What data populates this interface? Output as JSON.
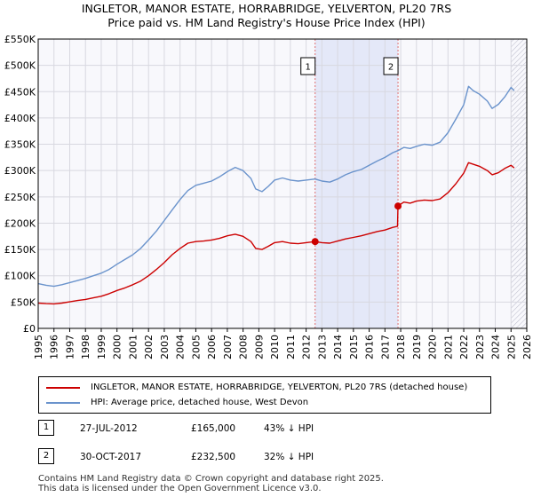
{
  "chart_data": {
    "type": "line",
    "title": "INGLETOR, MANOR ESTATE, HORRABRIDGE, YELVERTON, PL20 7RS",
    "subtitle": "Price paid vs. HM Land Registry's House Price Index (HPI)",
    "xlim": [
      1995,
      2026
    ],
    "ylim": [
      0,
      550000
    ],
    "x_ticks": [
      "1995",
      "1996",
      "1997",
      "1998",
      "1999",
      "2000",
      "2001",
      "2002",
      "2003",
      "2004",
      "2005",
      "2006",
      "2007",
      "2008",
      "2009",
      "2010",
      "2011",
      "2012",
      "2013",
      "2014",
      "2015",
      "2016",
      "2017",
      "2018",
      "2019",
      "2020",
      "2021",
      "2022",
      "2023",
      "2024",
      "2025",
      "2026"
    ],
    "y_ticks": [
      {
        "value": 0,
        "label": "£0"
      },
      {
        "value": 50000,
        "label": "£50K"
      },
      {
        "value": 100000,
        "label": "£100K"
      },
      {
        "value": 150000,
        "label": "£150K"
      },
      {
        "value": 200000,
        "label": "£200K"
      },
      {
        "value": 250000,
        "label": "£250K"
      },
      {
        "value": 300000,
        "label": "£300K"
      },
      {
        "value": 350000,
        "label": "£350K"
      },
      {
        "value": 400000,
        "label": "£400K"
      },
      {
        "value": 450000,
        "label": "£450K"
      },
      {
        "value": 500000,
        "label": "£500K"
      },
      {
        "value": 550000,
        "label": "£550K"
      }
    ],
    "grid": true,
    "shaded_period": [
      2012.57,
      2017.83
    ],
    "forecast_start": 2025.0,
    "series": [
      {
        "name": "INGLETOR, MANOR ESTATE, HORRABRIDGE, YELVERTON, PL20 7RS (detached house)",
        "color": "#cc0000",
        "points": [
          [
            1995.0,
            48000
          ],
          [
            1995.5,
            47000
          ],
          [
            1996.0,
            46500
          ],
          [
            1996.5,
            48000
          ],
          [
            1997.0,
            50500
          ],
          [
            1997.5,
            53000
          ],
          [
            1998.0,
            55000
          ],
          [
            1998.5,
            58000
          ],
          [
            1999.0,
            61000
          ],
          [
            1999.5,
            66000
          ],
          [
            2000.0,
            72000
          ],
          [
            2000.5,
            77000
          ],
          [
            2001.0,
            83000
          ],
          [
            2001.5,
            90000
          ],
          [
            2002.0,
            100000
          ],
          [
            2002.5,
            112000
          ],
          [
            2003.0,
            125000
          ],
          [
            2003.5,
            140000
          ],
          [
            2004.0,
            152000
          ],
          [
            2004.5,
            162000
          ],
          [
            2005.0,
            165000
          ],
          [
            2005.5,
            166000
          ],
          [
            2006.0,
            168000
          ],
          [
            2006.5,
            171000
          ],
          [
            2007.0,
            176000
          ],
          [
            2007.5,
            179000
          ],
          [
            2008.0,
            175000
          ],
          [
            2008.5,
            165000
          ],
          [
            2008.8,
            152000
          ],
          [
            2009.2,
            150000
          ],
          [
            2009.6,
            156000
          ],
          [
            2010.0,
            163000
          ],
          [
            2010.5,
            165000
          ],
          [
            2011.0,
            162000
          ],
          [
            2011.5,
            161000
          ],
          [
            2012.0,
            163000
          ],
          [
            2012.57,
            165000
          ],
          [
            2013.0,
            163000
          ],
          [
            2013.5,
            162000
          ],
          [
            2014.0,
            166000
          ],
          [
            2014.5,
            170000
          ],
          [
            2015.0,
            173000
          ],
          [
            2015.5,
            176000
          ],
          [
            2016.0,
            180000
          ],
          [
            2016.5,
            184000
          ],
          [
            2017.0,
            187000
          ],
          [
            2017.5,
            192000
          ],
          [
            2017.8,
            194000
          ],
          [
            2017.83,
            232500
          ],
          [
            2018.2,
            240000
          ],
          [
            2018.6,
            238000
          ],
          [
            2019.0,
            242000
          ],
          [
            2019.5,
            244000
          ],
          [
            2020.0,
            243000
          ],
          [
            2020.5,
            246000
          ],
          [
            2021.0,
            258000
          ],
          [
            2021.5,
            275000
          ],
          [
            2022.0,
            295000
          ],
          [
            2022.3,
            315000
          ],
          [
            2022.6,
            312000
          ],
          [
            2023.0,
            308000
          ],
          [
            2023.5,
            300000
          ],
          [
            2023.8,
            292000
          ],
          [
            2024.2,
            296000
          ],
          [
            2024.6,
            304000
          ],
          [
            2025.0,
            310000
          ],
          [
            2025.2,
            305000
          ]
        ]
      },
      {
        "name": "HPI: Average price, detached house, West Devon",
        "color": "#6a93cc",
        "points": [
          [
            1995.0,
            85000
          ],
          [
            1995.5,
            82000
          ],
          [
            1996.0,
            80000
          ],
          [
            1996.5,
            83000
          ],
          [
            1997.0,
            87000
          ],
          [
            1997.5,
            91000
          ],
          [
            1998.0,
            95000
          ],
          [
            1998.5,
            100000
          ],
          [
            1999.0,
            105000
          ],
          [
            1999.5,
            112000
          ],
          [
            2000.0,
            122000
          ],
          [
            2000.5,
            131000
          ],
          [
            2001.0,
            140000
          ],
          [
            2001.5,
            152000
          ],
          [
            2002.0,
            168000
          ],
          [
            2002.5,
            185000
          ],
          [
            2003.0,
            205000
          ],
          [
            2003.5,
            225000
          ],
          [
            2004.0,
            245000
          ],
          [
            2004.5,
            262000
          ],
          [
            2005.0,
            272000
          ],
          [
            2005.5,
            276000
          ],
          [
            2006.0,
            280000
          ],
          [
            2006.5,
            288000
          ],
          [
            2007.0,
            298000
          ],
          [
            2007.5,
            306000
          ],
          [
            2008.0,
            300000
          ],
          [
            2008.5,
            285000
          ],
          [
            2008.8,
            265000
          ],
          [
            2009.2,
            260000
          ],
          [
            2009.6,
            270000
          ],
          [
            2010.0,
            282000
          ],
          [
            2010.5,
            286000
          ],
          [
            2011.0,
            282000
          ],
          [
            2011.5,
            280000
          ],
          [
            2012.0,
            282000
          ],
          [
            2012.57,
            284000
          ],
          [
            2013.0,
            280000
          ],
          [
            2013.5,
            278000
          ],
          [
            2014.0,
            284000
          ],
          [
            2014.5,
            292000
          ],
          [
            2015.0,
            298000
          ],
          [
            2015.5,
            302000
          ],
          [
            2016.0,
            310000
          ],
          [
            2016.5,
            318000
          ],
          [
            2017.0,
            325000
          ],
          [
            2017.5,
            334000
          ],
          [
            2017.83,
            338000
          ],
          [
            2018.2,
            344000
          ],
          [
            2018.6,
            342000
          ],
          [
            2019.0,
            346000
          ],
          [
            2019.5,
            350000
          ],
          [
            2020.0,
            348000
          ],
          [
            2020.5,
            354000
          ],
          [
            2021.0,
            372000
          ],
          [
            2021.5,
            398000
          ],
          [
            2022.0,
            425000
          ],
          [
            2022.3,
            460000
          ],
          [
            2022.6,
            452000
          ],
          [
            2023.0,
            445000
          ],
          [
            2023.5,
            432000
          ],
          [
            2023.8,
            418000
          ],
          [
            2024.2,
            426000
          ],
          [
            2024.6,
            440000
          ],
          [
            2025.0,
            458000
          ],
          [
            2025.2,
            452000
          ]
        ]
      }
    ],
    "annotations": [
      {
        "label": "1",
        "x": 2012.57,
        "y": 165000
      },
      {
        "label": "2",
        "x": 2017.83,
        "y": 232500
      }
    ]
  },
  "legend": {
    "items": [
      {
        "label": "INGLETOR, MANOR ESTATE, HORRABRIDGE, YELVERTON, PL20 7RS (detached house)",
        "color": "#cc0000"
      },
      {
        "label": "HPI: Average price, detached house, West Devon",
        "color": "#6a93cc"
      }
    ]
  },
  "sales": [
    {
      "num": "1",
      "date": "27-JUL-2012",
      "price": "£165,000",
      "hpi": "43% ↓ HPI"
    },
    {
      "num": "2",
      "date": "30-OCT-2017",
      "price": "£232,500",
      "hpi": "32% ↓ HPI"
    }
  ],
  "footer": {
    "line1": "Contains HM Land Registry data © Crown copyright and database right 2025.",
    "line2": "This data is licensed under the Open Government Licence v3.0."
  }
}
